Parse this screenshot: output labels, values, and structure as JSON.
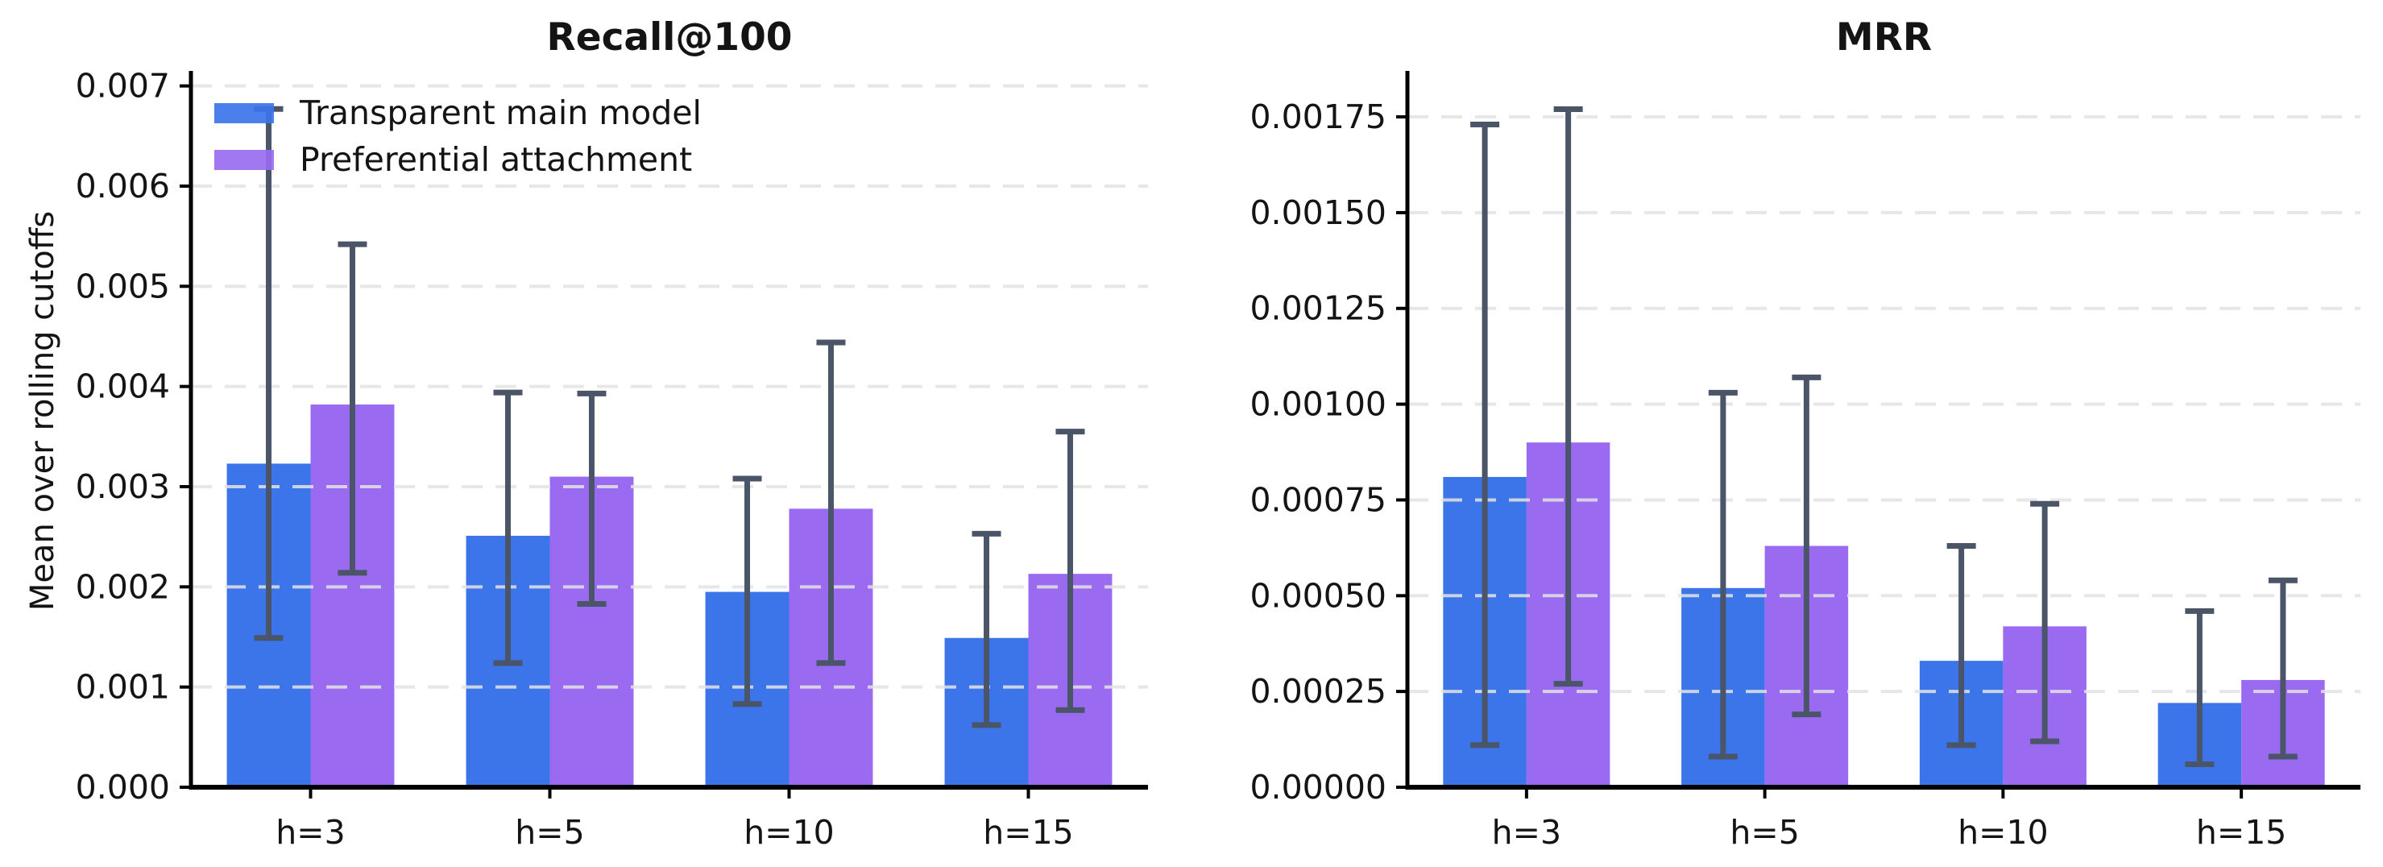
{
  "figure": {
    "background": "#ffffff",
    "error_bar_color": "#4A5568",
    "grid_color": "#E3E3E3",
    "spine_color": "#000000",
    "text_color": "#141414"
  },
  "chart_data": [
    {
      "type": "bar",
      "title": "Recall@100",
      "ylabel": "Mean over rolling cutoffs",
      "xlabel": "",
      "categories": [
        "h=3",
        "h=5",
        "h=10",
        "h=15"
      ],
      "ylim": [
        0,
        0.00715
      ],
      "grid": "dashed-horizontal",
      "legend_position": "upper-left-inside",
      "ytick_values": [
        0,
        0.001,
        0.002,
        0.003,
        0.004,
        0.005,
        0.006,
        0.007
      ],
      "ytick_labels": [
        "0.000",
        "0.001",
        "0.002",
        "0.003",
        "0.004",
        "0.005",
        "0.006",
        "0.007"
      ],
      "series": [
        {
          "name": "Transparent main model",
          "color": "#3C74E9",
          "values": [
            0.00323,
            0.00251,
            0.00195,
            0.00149
          ],
          "err_low": [
            0.00149,
            0.00124,
            0.00083,
            0.00062
          ],
          "err_high": [
            0.00677,
            0.00394,
            0.00308,
            0.00253
          ]
        },
        {
          "name": "Preferential attachment",
          "color": "#9A6BF1",
          "values": [
            0.00382,
            0.0031,
            0.00278,
            0.00213
          ],
          "err_low": [
            0.00214,
            0.00183,
            0.00124,
            0.00077
          ],
          "err_high": [
            0.00542,
            0.00393,
            0.00444,
            0.00355
          ]
        }
      ]
    },
    {
      "type": "bar",
      "title": "MRR",
      "ylabel": "",
      "xlabel": "",
      "categories": [
        "h=3",
        "h=5",
        "h=10",
        "h=15"
      ],
      "ylim": [
        0,
        0.00187
      ],
      "grid": "dashed-horizontal",
      "legend_position": "none",
      "ytick_values": [
        0,
        0.00025,
        0.0005,
        0.00075,
        0.001,
        0.00125,
        0.0015,
        0.00175
      ],
      "ytick_labels": [
        "0.00000",
        "0.00025",
        "0.00050",
        "0.00075",
        "0.00100",
        "0.00125",
        "0.00150",
        "0.00175"
      ],
      "series": [
        {
          "name": "Transparent main model",
          "color": "#3C74E9",
          "values": [
            0.00081,
            0.00052,
            0.00033,
            0.00022
          ],
          "err_low": [
            0.00011,
            8e-05,
            0.00011,
            6e-05
          ],
          "err_high": [
            0.00173,
            0.00103,
            0.00063,
            0.00046
          ]
        },
        {
          "name": "Preferential attachment",
          "color": "#9A6BF1",
          "values": [
            0.0009,
            0.00063,
            0.00042,
            0.00028
          ],
          "err_low": [
            0.00027,
            0.00019,
            0.00012,
            8e-05
          ],
          "err_high": [
            0.00177,
            0.00107,
            0.00074,
            0.00054
          ]
        }
      ]
    }
  ]
}
